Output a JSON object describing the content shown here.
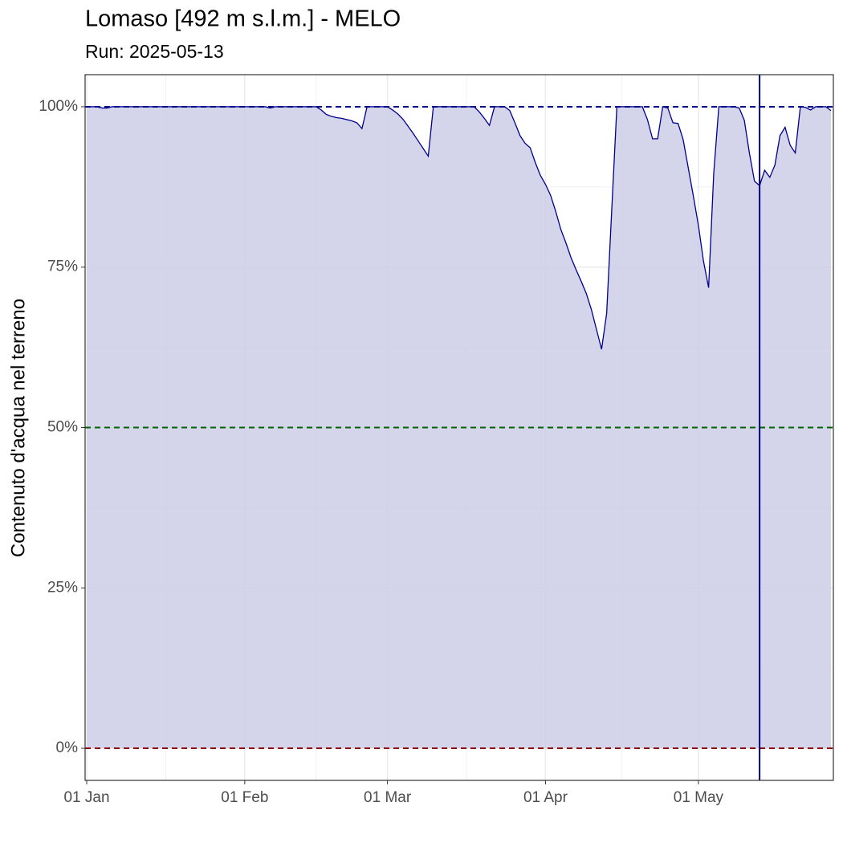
{
  "chart_data": {
    "type": "area",
    "title": "Lomaso [492 m s.l.m.] - MELO",
    "subtitle": "Run: 2025-05-13",
    "y_label": "Contenuto d'acqua nel terreno",
    "x": [
      "01 Jan",
      "02 Jan",
      "03 Jan",
      "04 Jan",
      "05 Jan",
      "06 Jan",
      "07 Jan",
      "08 Jan",
      "09 Jan",
      "10 Jan",
      "11 Jan",
      "12 Jan",
      "13 Jan",
      "14 Jan",
      "15 Jan",
      "16 Jan",
      "17 Jan",
      "18 Jan",
      "19 Jan",
      "20 Jan",
      "21 Jan",
      "22 Jan",
      "23 Jan",
      "24 Jan",
      "25 Jan",
      "26 Jan",
      "27 Jan",
      "28 Jan",
      "29 Jan",
      "30 Jan",
      "31 Jan",
      "01 Feb",
      "02 Feb",
      "03 Feb",
      "04 Feb",
      "05 Feb",
      "06 Feb",
      "07 Feb",
      "08 Feb",
      "09 Feb",
      "10 Feb",
      "11 Feb",
      "12 Feb",
      "13 Feb",
      "14 Feb",
      "15 Feb",
      "16 Feb",
      "17 Feb",
      "18 Feb",
      "19 Feb",
      "20 Feb",
      "21 Feb",
      "22 Feb",
      "23 Feb",
      "24 Feb",
      "25 Feb",
      "26 Feb",
      "27 Feb",
      "28 Feb",
      "01 Mar",
      "02 Mar",
      "03 Mar",
      "04 Mar",
      "05 Mar",
      "06 Mar",
      "07 Mar",
      "08 Mar",
      "09 Mar",
      "10 Mar",
      "11 Mar",
      "12 Mar",
      "13 Mar",
      "14 Mar",
      "15 Mar",
      "16 Mar",
      "17 Mar",
      "18 Mar",
      "19 Mar",
      "20 Mar",
      "21 Mar",
      "22 Mar",
      "23 Mar",
      "24 Mar",
      "25 Mar",
      "26 Mar",
      "27 Mar",
      "28 Mar",
      "29 Mar",
      "30 Mar",
      "31 Mar",
      "01 Apr",
      "02 Apr",
      "03 Apr",
      "04 Apr",
      "05 Apr",
      "06 Apr",
      "07 Apr",
      "08 Apr",
      "09 Apr",
      "10 Apr",
      "11 Apr",
      "12 Apr",
      "13 Apr",
      "14 Apr",
      "15 Apr",
      "16 Apr",
      "17 Apr",
      "18 Apr",
      "19 Apr",
      "20 Apr",
      "21 Apr",
      "22 Apr",
      "23 Apr",
      "24 Apr",
      "25 Apr",
      "26 Apr",
      "27 Apr",
      "28 Apr",
      "29 Apr",
      "30 Apr",
      "01 May",
      "02 May",
      "03 May",
      "04 May",
      "05 May",
      "06 May",
      "07 May",
      "08 May",
      "09 May",
      "10 May",
      "11 May",
      "12 May",
      "13 May",
      "14 May",
      "15 May",
      "16 May",
      "17 May",
      "18 May",
      "19 May",
      "20 May",
      "21 May",
      "22 May",
      "23 May",
      "24 May",
      "25 May",
      "26 May",
      "27 May"
    ],
    "values": [
      100,
      100,
      100,
      99.8,
      99.8,
      100,
      100,
      100,
      100,
      100,
      100,
      100,
      100,
      100,
      100,
      100,
      100,
      100,
      100,
      100,
      100,
      100,
      100,
      100,
      100,
      100,
      100,
      100,
      100,
      100,
      100,
      100,
      100,
      100,
      100,
      100,
      99.8,
      100,
      100,
      100,
      100,
      100,
      100,
      100,
      100,
      100,
      99.5,
      98.8,
      98.5,
      98.3,
      98.2,
      98.0,
      97.8,
      97.5,
      96.6,
      100,
      100,
      100,
      100,
      100,
      99.5,
      98.9,
      98.1,
      97.0,
      95.9,
      94.7,
      93.5,
      92.3,
      100,
      100,
      100,
      100,
      100,
      100,
      100,
      100,
      100,
      99.2,
      98.2,
      97.1,
      100,
      100,
      100,
      99.4,
      97.5,
      95.5,
      94.3,
      93.6,
      91.3,
      89.3,
      87.9,
      86.2,
      83.7,
      80.9,
      78.8,
      76.5,
      74.6,
      72.8,
      70.9,
      68.4,
      65.3,
      62.2,
      67.8,
      84,
      100,
      100,
      100,
      100,
      100,
      100,
      98,
      95,
      95,
      100,
      99.8,
      97.5,
      97.4,
      94.9,
      90.5,
      86.1,
      81.5,
      75.9,
      71.8,
      89.6,
      100,
      100,
      100,
      100,
      99.8,
      97.9,
      92.8,
      88.4,
      87.7,
      90.1,
      89.0,
      90.9,
      95.5,
      96.8,
      94.0,
      92.8,
      100,
      99.9,
      99.5,
      100,
      100,
      100,
      99.4
    ],
    "line_color": "#00008b",
    "fill_color": "#cccce8",
    "ylim": [
      -5,
      105
    ],
    "yticks": [
      {
        "value": 0,
        "label": "0%"
      },
      {
        "value": 25,
        "label": "25%"
      },
      {
        "value": 50,
        "label": "50%"
      },
      {
        "value": 75,
        "label": "75%"
      },
      {
        "value": 100,
        "label": "100%"
      }
    ],
    "xticks": [
      "01 Jan",
      "01 Feb",
      "01 Mar",
      "01 Apr",
      "01 May"
    ],
    "hlines": [
      {
        "value": 100,
        "color": "#00008b"
      },
      {
        "value": 50,
        "color": "#006400"
      },
      {
        "value": 0,
        "color": "#8b0000"
      }
    ],
    "vline": {
      "x": "13 May",
      "color": "#00008b"
    },
    "grid": true
  }
}
